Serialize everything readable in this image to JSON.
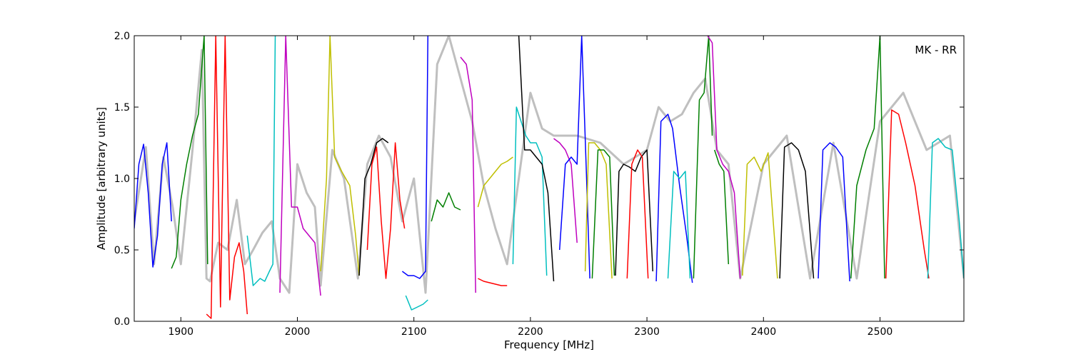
{
  "chart_data": {
    "type": "line",
    "xlabel": "Frequency [MHz]",
    "ylabel": "Amplitude [arbitrary units]",
    "annotation": "MK - RR",
    "xlim": [
      1860,
      2572
    ],
    "ylim": [
      0.0,
      2.0
    ],
    "x_ticks": [
      1900,
      2000,
      2100,
      2200,
      2300,
      2400,
      2500
    ],
    "x_tick_labels": [
      "1900",
      "2000",
      "2100",
      "2200",
      "2300",
      "2400",
      "2500"
    ],
    "y_ticks": [
      0.0,
      0.5,
      1.0,
      1.5,
      2.0
    ],
    "y_tick_labels": [
      "0.0",
      "0.5",
      "1.0",
      "1.5",
      "2.0"
    ],
    "grid": false,
    "background_series": {
      "color": "#bfbfbf",
      "x": [
        1860,
        1870,
        1877,
        1885,
        1893,
        1900,
        1910,
        1918,
        1922,
        1925,
        1932,
        1940,
        1948,
        1955,
        1962,
        1970,
        1978,
        1985,
        1993,
        2000,
        2008,
        2015,
        2020,
        2030,
        2040,
        2052,
        2060,
        2070,
        2080,
        2090,
        2100,
        2110,
        2120,
        2130,
        2140,
        2150,
        2160,
        2170,
        2180,
        2190,
        2200,
        2210,
        2220,
        2240,
        2260,
        2280,
        2300,
        2310,
        2320,
        2330,
        2340,
        2350,
        2360,
        2370,
        2380,
        2400,
        2420,
        2440,
        2460,
        2480,
        2500,
        2520,
        2540,
        2560,
        2572
      ],
      "values": [
        0.7,
        1.22,
        0.4,
        1.15,
        0.8,
        0.4,
        1.2,
        1.9,
        0.3,
        0.28,
        0.55,
        0.5,
        0.85,
        0.4,
        0.5,
        0.62,
        0.7,
        0.3,
        0.2,
        1.1,
        0.9,
        0.8,
        0.25,
        1.2,
        1.0,
        0.3,
        1.1,
        1.3,
        1.15,
        0.7,
        1.0,
        0.2,
        1.8,
        2.0,
        1.7,
        1.4,
        0.95,
        0.65,
        0.4,
        1.0,
        1.6,
        1.35,
        1.3,
        1.3,
        1.25,
        1.1,
        1.2,
        1.5,
        1.4,
        1.45,
        1.6,
        1.7,
        1.2,
        1.1,
        0.3,
        1.1,
        1.3,
        0.3,
        1.25,
        0.3,
        1.4,
        1.6,
        1.2,
        1.3,
        0.3
      ]
    },
    "series": [
      {
        "color": "#0000ff",
        "x": [
          1860,
          1864,
          1868,
          1872,
          1876,
          1880,
          1884,
          1888,
          1892
        ],
        "values": [
          0.65,
          1.1,
          1.24,
          0.9,
          0.38,
          0.6,
          1.1,
          1.25,
          0.7
        ]
      },
      {
        "color": "#007f00",
        "x": [
          1892,
          1896,
          1900,
          1905,
          1910,
          1915,
          1920,
          1923
        ],
        "values": [
          0.37,
          0.45,
          0.85,
          1.1,
          1.3,
          1.45,
          2.0,
          0.4
        ]
      },
      {
        "color": "#ff0000",
        "x": [
          1922,
          1926,
          1930,
          1934,
          1938,
          1942,
          1946,
          1950,
          1954,
          1957
        ],
        "values": [
          0.05,
          0.02,
          2.0,
          0.1,
          2.0,
          0.15,
          0.45,
          0.55,
          0.35,
          0.05
        ]
      },
      {
        "color": "#00bfbf",
        "x": [
          1957,
          1962,
          1968,
          1972,
          1976,
          1979,
          1981
        ],
        "values": [
          0.6,
          0.25,
          0.3,
          0.28,
          0.35,
          0.4,
          2.0
        ]
      },
      {
        "color": "#bf00bf",
        "x": [
          1985,
          1990,
          1995,
          2000,
          2005,
          2010,
          2015,
          2020
        ],
        "values": [
          0.2,
          2.0,
          0.8,
          0.8,
          0.65,
          0.6,
          0.55,
          0.18
        ]
      },
      {
        "color": "#bfbf00",
        "x": [
          2020,
          2025,
          2028,
          2032,
          2038,
          2045,
          2050,
          2053
        ],
        "values": [
          0.35,
          1.0,
          2.0,
          1.15,
          1.05,
          0.95,
          0.6,
          0.32
        ]
      },
      {
        "color": "#000000",
        "x": [
          2053,
          2058,
          2063,
          2068,
          2073,
          2078
        ],
        "values": [
          0.32,
          1.0,
          1.1,
          1.25,
          1.28,
          1.25
        ]
      },
      {
        "color": "#ff0000",
        "x": [
          2060,
          2064,
          2068,
          2072,
          2076,
          2080,
          2084,
          2088,
          2092
        ],
        "values": [
          0.5,
          1.1,
          1.22,
          0.7,
          0.3,
          0.65,
          1.25,
          0.85,
          0.65
        ]
      },
      {
        "color": "#0000ff",
        "x": [
          2090,
          2095,
          2100,
          2105,
          2110,
          2112
        ],
        "values": [
          0.35,
          0.32,
          0.32,
          0.3,
          0.35,
          2.0
        ]
      },
      {
        "color": "#00bfbf",
        "x": [
          2093,
          2098,
          2103,
          2108,
          2112
        ],
        "values": [
          0.18,
          0.08,
          0.1,
          0.12,
          0.15
        ]
      },
      {
        "color": "#007f00",
        "x": [
          2115,
          2120,
          2125,
          2130,
          2135,
          2140
        ],
        "values": [
          0.7,
          0.85,
          0.8,
          0.9,
          0.8,
          0.78
        ]
      },
      {
        "color": "#bf00bf",
        "x": [
          2140,
          2145,
          2150,
          2153
        ],
        "values": [
          1.85,
          1.8,
          1.55,
          0.2
        ]
      },
      {
        "color": "#ff0000",
        "x": [
          2155,
          2160,
          2165,
          2170,
          2175,
          2180
        ],
        "values": [
          0.3,
          0.28,
          0.27,
          0.26,
          0.25,
          0.25
        ]
      },
      {
        "color": "#bfbf00",
        "x": [
          2155,
          2160,
          2165,
          2170,
          2175,
          2180,
          2185
        ],
        "values": [
          0.8,
          0.95,
          1.0,
          1.05,
          1.1,
          1.12,
          1.15
        ]
      },
      {
        "color": "#00bfbf",
        "x": [
          2185,
          2188,
          2192,
          2196,
          2200,
          2205,
          2210,
          2214
        ],
        "values": [
          0.4,
          1.5,
          1.4,
          1.3,
          1.25,
          1.25,
          1.15,
          0.32
        ]
      },
      {
        "color": "#000000",
        "x": [
          2190,
          2195,
          2200,
          2205,
          2210,
          2215,
          2220
        ],
        "values": [
          2.0,
          1.2,
          1.2,
          1.15,
          1.1,
          0.9,
          0.28
        ]
      },
      {
        "color": "#bf00bf",
        "x": [
          2220,
          2225,
          2230,
          2235,
          2240
        ],
        "values": [
          1.28,
          1.25,
          1.2,
          1.1,
          0.55
        ]
      },
      {
        "color": "#0000ff",
        "x": [
          2225,
          2230,
          2235,
          2240,
          2244,
          2248,
          2251
        ],
        "values": [
          0.5,
          1.1,
          1.15,
          1.1,
          2.0,
          1.05,
          0.3
        ]
      },
      {
        "color": "#bfbf00",
        "x": [
          2247,
          2250,
          2255,
          2260,
          2265,
          2270
        ],
        "values": [
          0.35,
          1.25,
          1.25,
          1.2,
          1.1,
          0.3
        ]
      },
      {
        "color": "#007f00",
        "x": [
          2253,
          2258,
          2263,
          2268,
          2272
        ],
        "values": [
          0.3,
          1.2,
          1.2,
          1.15,
          0.32
        ]
      },
      {
        "color": "#000000",
        "x": [
          2273,
          2276,
          2280,
          2285,
          2290,
          2295,
          2300,
          2305
        ],
        "values": [
          0.32,
          1.05,
          1.1,
          1.08,
          1.05,
          1.15,
          1.2,
          0.35
        ]
      },
      {
        "color": "#ff0000",
        "x": [
          2283,
          2287,
          2292,
          2296,
          2301
        ],
        "values": [
          0.3,
          1.1,
          1.2,
          1.15,
          0.3
        ]
      },
      {
        "color": "#0000ff",
        "x": [
          2308,
          2312,
          2318,
          2322,
          2328,
          2334,
          2339
        ],
        "values": [
          0.28,
          1.4,
          1.45,
          1.35,
          0.95,
          0.6,
          0.27
        ]
      },
      {
        "color": "#00bfbf",
        "x": [
          2318,
          2323,
          2328,
          2333,
          2337
        ],
        "values": [
          0.3,
          1.05,
          1.0,
          1.05,
          0.3
        ]
      },
      {
        "color": "#007f00",
        "x": [
          2340,
          2345,
          2349,
          2353,
          2356
        ],
        "values": [
          0.3,
          1.55,
          1.6,
          2.0,
          1.3
        ]
      },
      {
        "color": "#bf00bf",
        "x": [
          2352,
          2356,
          2360,
          2365,
          2370,
          2375,
          2380
        ],
        "values": [
          2.0,
          1.95,
          1.2,
          1.1,
          1.05,
          0.9,
          0.3
        ]
      },
      {
        "color": "#007f00",
        "x": [
          2358,
          2362,
          2366,
          2370
        ],
        "values": [
          1.2,
          1.1,
          1.05,
          0.4
        ]
      },
      {
        "color": "#bfbf00",
        "x": [
          2382,
          2386,
          2392,
          2398,
          2404,
          2412
        ],
        "values": [
          0.32,
          1.1,
          1.15,
          1.05,
          1.18,
          0.3
        ]
      },
      {
        "color": "#000000",
        "x": [
          2414,
          2418,
          2424,
          2430,
          2436,
          2443
        ],
        "values": [
          0.3,
          1.22,
          1.25,
          1.2,
          1.05,
          0.3
        ]
      },
      {
        "color": "#0000ff",
        "x": [
          2447,
          2451,
          2457,
          2462,
          2468,
          2474
        ],
        "values": [
          0.3,
          1.2,
          1.25,
          1.22,
          1.15,
          0.28
        ]
      },
      {
        "color": "#007f00",
        "x": [
          2475,
          2480,
          2488,
          2495,
          2500,
          2504
        ],
        "values": [
          0.3,
          0.95,
          1.2,
          1.35,
          2.0,
          0.3
        ]
      },
      {
        "color": "#ff0000",
        "x": [
          2505,
          2510,
          2516,
          2522,
          2530,
          2538,
          2542
        ],
        "values": [
          0.3,
          1.48,
          1.45,
          1.25,
          0.95,
          0.5,
          0.3
        ]
      },
      {
        "color": "#00bfbf",
        "x": [
          2541,
          2545,
          2550,
          2556,
          2562,
          2568,
          2572
        ],
        "values": [
          0.3,
          1.25,
          1.28,
          1.22,
          1.2,
          0.7,
          0.3
        ]
      }
    ]
  }
}
